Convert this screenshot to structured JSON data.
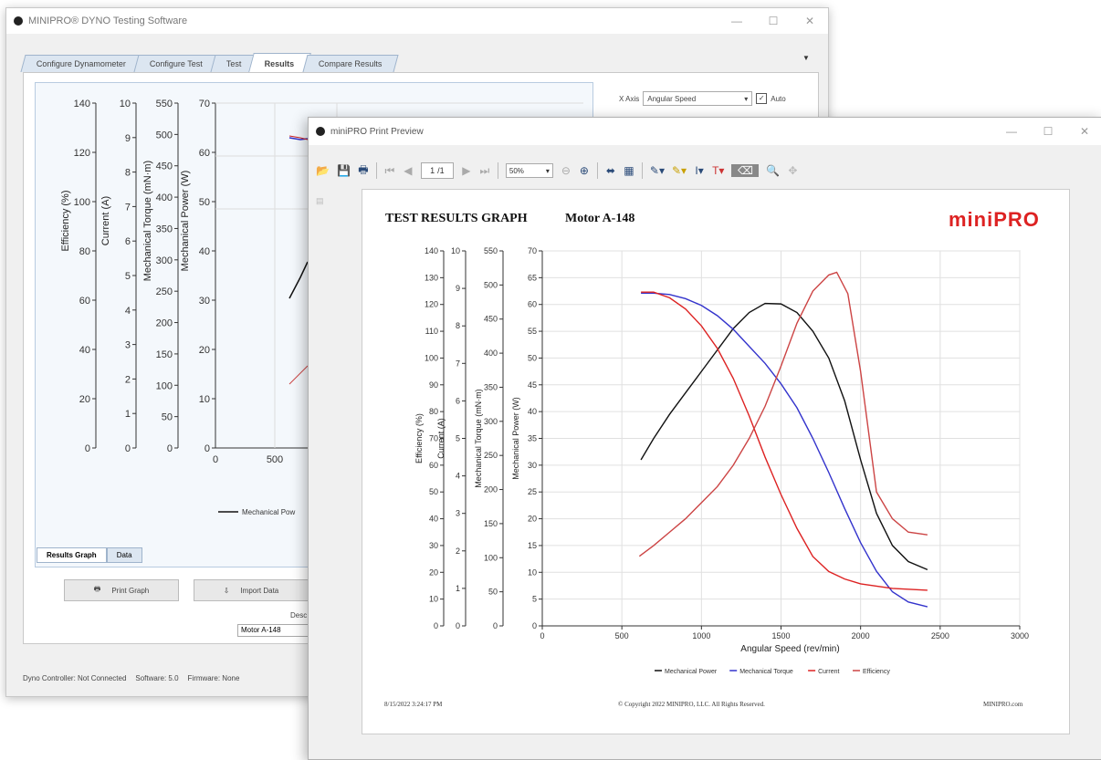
{
  "main_window": {
    "title": "MINIPRO® DYNO Testing Software",
    "tabs": [
      "Configure Dynamometer",
      "Configure Test",
      "Test",
      "Results",
      "Compare Results"
    ],
    "active_tab": "Results",
    "x_axis_label": "X Axis",
    "x_axis_value": "Angular Speed",
    "auto_label": "Auto",
    "auto_checked": "✓",
    "bg_axes": {
      "efficiency": {
        "label": "Efficiency (%)",
        "ticks": [
          "140",
          "120",
          "100",
          "80",
          "60",
          "40",
          "20",
          "0"
        ]
      },
      "current": {
        "label": "Current (A)",
        "ticks": [
          "10",
          "9",
          "8",
          "7",
          "6",
          "5",
          "4",
          "3",
          "2",
          "1",
          "0"
        ]
      },
      "torque": {
        "label": "Mechanical Torque (mN·m)",
        "ticks": [
          "550",
          "500",
          "450",
          "400",
          "350",
          "300",
          "250",
          "200",
          "150",
          "100",
          "50",
          "0"
        ]
      },
      "power": {
        "label": "Mechanical Power (W)",
        "ticks": [
          "70",
          "60",
          "50",
          "40",
          "30",
          "20",
          "10",
          "0"
        ]
      },
      "x_ticks": [
        "0",
        "500"
      ]
    },
    "legend_partial": "Mechanical Pow",
    "bottom_tabs": [
      "Results Graph",
      "Data"
    ],
    "print_graph": "Print Graph",
    "import_data": "Import Data",
    "desc_label": "Desc",
    "desc_value": "Motor A-148",
    "status": [
      "Dyno Controller: Not Connected",
      "Software: 5.0",
      "Firmware: None"
    ]
  },
  "preview_window": {
    "title": "miniPRO Print Preview",
    "page_current": "1",
    "page_total": "/1",
    "zoom": "50%"
  },
  "report": {
    "title": "TEST RESULTS GRAPH",
    "subtitle": "Motor A-148",
    "logo": "miniPRO",
    "footer_left": "8/15/2022 3:24:17 PM",
    "footer_center": "© Copyright 2022 MINIPRO, LLC. All Rights Reserved.",
    "footer_right": "MINIPRO.com"
  },
  "chart_data": {
    "type": "line",
    "xlabel": "Angular Speed (rev/min)",
    "xlim": [
      0,
      3000
    ],
    "x_ticks": [
      "0",
      "500",
      "1000",
      "1500",
      "2000",
      "2500",
      "3000"
    ],
    "axes": {
      "efficiency": {
        "label": "Efficiency (%)",
        "lim": [
          0,
          140
        ],
        "ticks": [
          "0",
          "10",
          "20",
          "30",
          "40",
          "50",
          "60",
          "70",
          "80",
          "90",
          "100",
          "110",
          "120",
          "130",
          "140"
        ]
      },
      "current": {
        "label": "Current (A)",
        "lim": [
          0,
          10
        ],
        "ticks": [
          "0",
          "1",
          "2",
          "3",
          "4",
          "5",
          "6",
          "7",
          "8",
          "9",
          "10"
        ]
      },
      "torque": {
        "label": "Mechanical Torque (mN·m)",
        "lim": [
          0,
          550
        ],
        "ticks": [
          "0",
          "50",
          "100",
          "150",
          "200",
          "250",
          "300",
          "350",
          "400",
          "450",
          "500",
          "550"
        ]
      },
      "power": {
        "label": "Mechanical Power (W)",
        "lim": [
          0,
          70
        ],
        "ticks": [
          "0",
          "5",
          "10",
          "15",
          "20",
          "25",
          "30",
          "35",
          "40",
          "45",
          "50",
          "55",
          "60",
          "65",
          "70"
        ]
      }
    },
    "series": [
      {
        "name": "Mechanical Power",
        "color": "#111111",
        "axis": "power",
        "x": [
          620,
          700,
          800,
          900,
          1000,
          1100,
          1200,
          1300,
          1400,
          1500,
          1600,
          1700,
          1800,
          1900,
          2000,
          2100,
          2200,
          2300,
          2420
        ],
        "y": [
          31,
          35,
          39.5,
          43.5,
          47.5,
          51.5,
          55.5,
          58.5,
          60.2,
          60.1,
          58.5,
          55,
          50,
          42,
          31,
          21,
          15,
          12,
          10.5
        ]
      },
      {
        "name": "Mechanical Torque",
        "color": "#3333cc",
        "axis": "torque",
        "x": [
          620,
          700,
          800,
          900,
          1000,
          1100,
          1200,
          1300,
          1400,
          1500,
          1600,
          1700,
          1800,
          1900,
          2000,
          2100,
          2200,
          2300,
          2420
        ],
        "y": [
          488,
          488,
          486,
          480,
          470,
          455,
          435,
          410,
          385,
          355,
          320,
          275,
          225,
          172,
          122,
          80,
          50,
          35,
          28
        ]
      },
      {
        "name": "Current",
        "color": "#dd2222",
        "axis": "current",
        "x": [
          620,
          700,
          800,
          900,
          1000,
          1100,
          1200,
          1300,
          1400,
          1500,
          1600,
          1700,
          1800,
          1900,
          2000,
          2200,
          2420
        ],
        "y": [
          8.9,
          8.9,
          8.75,
          8.45,
          8.0,
          7.4,
          6.6,
          5.6,
          4.5,
          3.5,
          2.6,
          1.85,
          1.45,
          1.25,
          1.12,
          1.0,
          0.95
        ]
      },
      {
        "name": "Efficiency",
        "color": "#cc4444",
        "axis": "efficiency",
        "x": [
          610,
          700,
          800,
          900,
          1000,
          1100,
          1200,
          1300,
          1400,
          1500,
          1600,
          1700,
          1800,
          1850,
          1920,
          2000,
          2100,
          2200,
          2300,
          2420
        ],
        "y": [
          26,
          30,
          35,
          40,
          46,
          52,
          60,
          70,
          82,
          97,
          113,
          125,
          131,
          132,
          124,
          95,
          50,
          40,
          35,
          34
        ]
      }
    ]
  }
}
